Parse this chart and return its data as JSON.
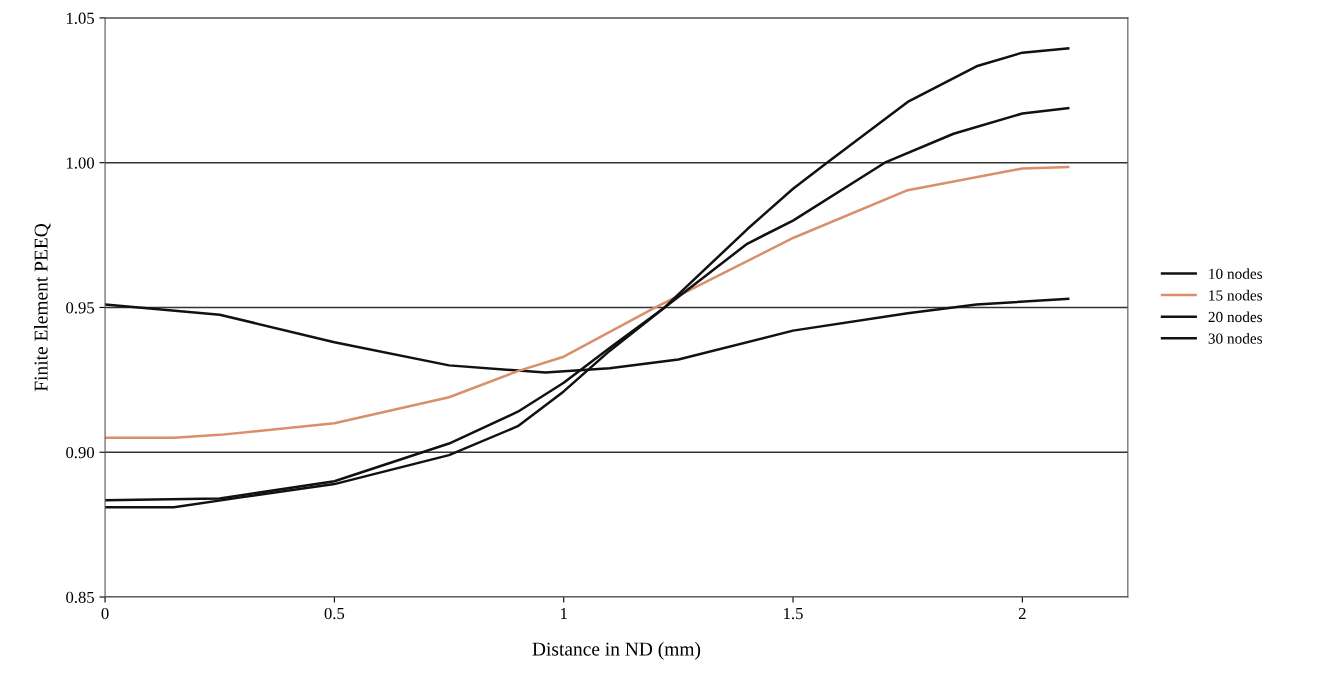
{
  "chart_data": {
    "type": "line",
    "xlabel": "Distance in ND (mm)",
    "ylabel": "Finite Element PEEQ",
    "xlim": [
      0,
      2.23
    ],
    "xticks": [
      0,
      0.5,
      1,
      1.5,
      2
    ],
    "ylim": [
      0.85,
      1.05
    ],
    "yticks": [
      {
        "value": 0.85,
        "label": "0.85"
      },
      {
        "value": 0.9,
        "label": "0.90"
      },
      {
        "value": 0.95,
        "label": "0.95"
      },
      {
        "value": 1.0,
        "label": "1.00"
      },
      {
        "value": 1.05,
        "label": "1.05"
      }
    ],
    "grid": "y",
    "legend": "right",
    "marker": "none",
    "line_style": "solid",
    "series": [
      {
        "name": "10 nodes",
        "color": "#111111",
        "x": [
          0,
          0.25,
          0.5,
          0.75,
          0.96,
          1.1,
          1.25,
          1.5,
          1.75,
          1.9,
          2.1
        ],
        "values": [
          0.951,
          0.9475,
          0.938,
          0.93,
          0.9275,
          0.929,
          0.932,
          0.942,
          0.948,
          0.951,
          0.953
        ]
      },
      {
        "name": "15 nodes",
        "color": "#d9906a",
        "x": [
          0,
          0.15,
          0.25,
          0.5,
          0.75,
          0.9,
          1.0,
          1.2,
          1.5,
          1.75,
          2.0,
          2.1
        ],
        "values": [
          0.905,
          0.905,
          0.906,
          0.91,
          0.919,
          0.928,
          0.933,
          0.95,
          0.974,
          0.9905,
          0.998,
          0.9985
        ]
      },
      {
        "name": "20 nodes",
        "color": "#111111",
        "x": [
          0,
          0.25,
          0.5,
          0.75,
          0.9,
          1.0,
          1.1,
          1.22,
          1.4,
          1.5,
          1.7,
          1.85,
          2.0,
          2.1
        ],
        "values": [
          0.8834,
          0.884,
          0.89,
          0.903,
          0.914,
          0.924,
          0.936,
          0.95,
          0.972,
          0.98,
          1.0,
          1.01,
          1.017,
          1.0188
        ]
      },
      {
        "name": "30 nodes",
        "color": "#111111",
        "x": [
          0,
          0.15,
          0.3,
          0.5,
          0.75,
          0.9,
          1.0,
          1.1,
          1.22,
          1.4,
          1.5,
          1.574,
          1.75,
          1.9,
          2.0,
          2.1
        ],
        "values": [
          0.881,
          0.881,
          0.8845,
          0.889,
          0.899,
          0.909,
          0.921,
          0.935,
          0.95,
          0.977,
          0.991,
          1.0,
          1.021,
          1.0333,
          1.038,
          1.0395
        ]
      }
    ]
  }
}
